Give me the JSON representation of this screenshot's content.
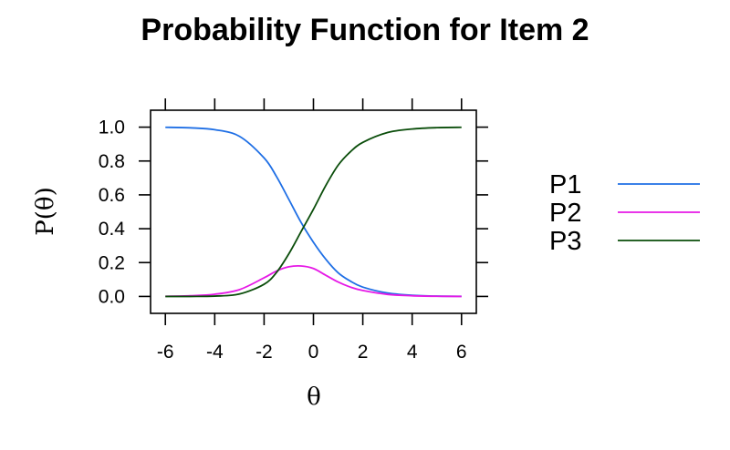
{
  "chart_data": {
    "type": "line",
    "title": "Probability Function for Item 2",
    "xlabel": "θ",
    "ylabel": "P(θ)",
    "xlim": [
      -6.6,
      6.6
    ],
    "ylim": [
      -0.1,
      1.1
    ],
    "x_ticks": [
      -6,
      -4,
      -2,
      0,
      2,
      4,
      6
    ],
    "x_tick_labels": [
      "-6",
      "-4",
      "-2",
      "0",
      "2",
      "4",
      "6"
    ],
    "y_ticks": [
      0.0,
      0.2,
      0.4,
      0.6,
      0.8,
      1.0
    ],
    "y_tick_labels": [
      "0.0",
      "0.2",
      "0.4",
      "0.6",
      "0.8",
      "1.0"
    ],
    "grid": false,
    "legend_position": "right",
    "x": [
      -6,
      -5,
      -4,
      -3,
      -2,
      -1.5,
      -1,
      -0.5,
      0,
      0.5,
      1,
      1.5,
      2,
      3,
      4,
      5,
      6
    ],
    "series": [
      {
        "name": "P1",
        "color": "#1f6fe5",
        "values": [
          0.999,
          0.996,
          0.985,
          0.946,
          0.818,
          0.709,
          0.574,
          0.437,
          0.32,
          0.22,
          0.14,
          0.09,
          0.055,
          0.02,
          0.007,
          0.002,
          0.001
        ]
      },
      {
        "name": "P2",
        "color": "#e619e6",
        "values": [
          0.001,
          0.004,
          0.013,
          0.04,
          0.11,
          0.15,
          0.175,
          0.18,
          0.165,
          0.125,
          0.085,
          0.055,
          0.035,
          0.012,
          0.004,
          0.001,
          0.0
        ]
      },
      {
        "name": "P3",
        "color": "#0a4d0a",
        "values": [
          0.0,
          0.0,
          0.002,
          0.014,
          0.072,
          0.141,
          0.251,
          0.383,
          0.515,
          0.655,
          0.775,
          0.855,
          0.91,
          0.968,
          0.989,
          0.997,
          0.999
        ]
      }
    ]
  }
}
